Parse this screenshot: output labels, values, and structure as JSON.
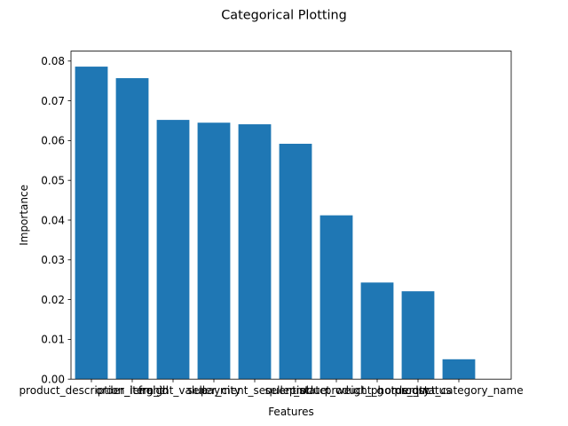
{
  "chart_data": {
    "type": "bar",
    "title": "Categorical Plotting",
    "xlabel": "Features",
    "ylabel": "Importance",
    "categories": [
      "product_description_lenght",
      "order_item_id",
      "freight_value",
      "seller_city",
      "payment_sequential",
      "seller_state",
      "product_weight_g",
      "product_photos_qty",
      "order_status",
      "product_category_name"
    ],
    "values": [
      0.0786,
      0.0757,
      0.0652,
      0.0645,
      0.0641,
      0.0592,
      0.0412,
      0.0243,
      0.0221,
      0.005
    ],
    "ylim": [
      0,
      0.0825
    ],
    "yticks": [
      0.0,
      0.01,
      0.02,
      0.03,
      0.04,
      0.05,
      0.06,
      0.07,
      0.08
    ],
    "ytick_labels": [
      "0.00",
      "0.01",
      "0.02",
      "0.03",
      "0.04",
      "0.05",
      "0.06",
      "0.07",
      "0.08"
    ],
    "bar_color": "#1f77b4",
    "grid": false,
    "legend": "none"
  }
}
